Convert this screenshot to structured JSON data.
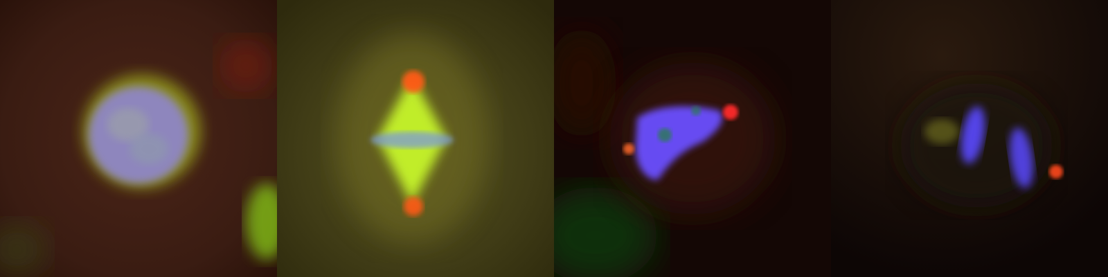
{
  "panels": [
    {
      "id": "panel-1",
      "stage": "prophase",
      "channels": [
        "dna-blue",
        "tubulin-green",
        "centrosome-red"
      ],
      "background_color": "#3a1c12"
    },
    {
      "id": "panel-2",
      "stage": "metaphase",
      "channels": [
        "dna-blue",
        "spindle-green",
        "spindle-pole-red"
      ],
      "background_color": "#3f3b16"
    },
    {
      "id": "panel-3",
      "stage": "prometaphase",
      "channels": [
        "dna-blue",
        "tubulin-green",
        "centrosome-red"
      ],
      "background_color": "#160705"
    },
    {
      "id": "panel-4",
      "stage": "anaphase",
      "channels": [
        "dna-blue",
        "midzone-green",
        "centrosome-red"
      ],
      "background_color": "#120906"
    }
  ],
  "colors": {
    "dna": "#7b62ff",
    "tubulin": "#c7ff2a",
    "centrosome": "#ff4a2a"
  }
}
